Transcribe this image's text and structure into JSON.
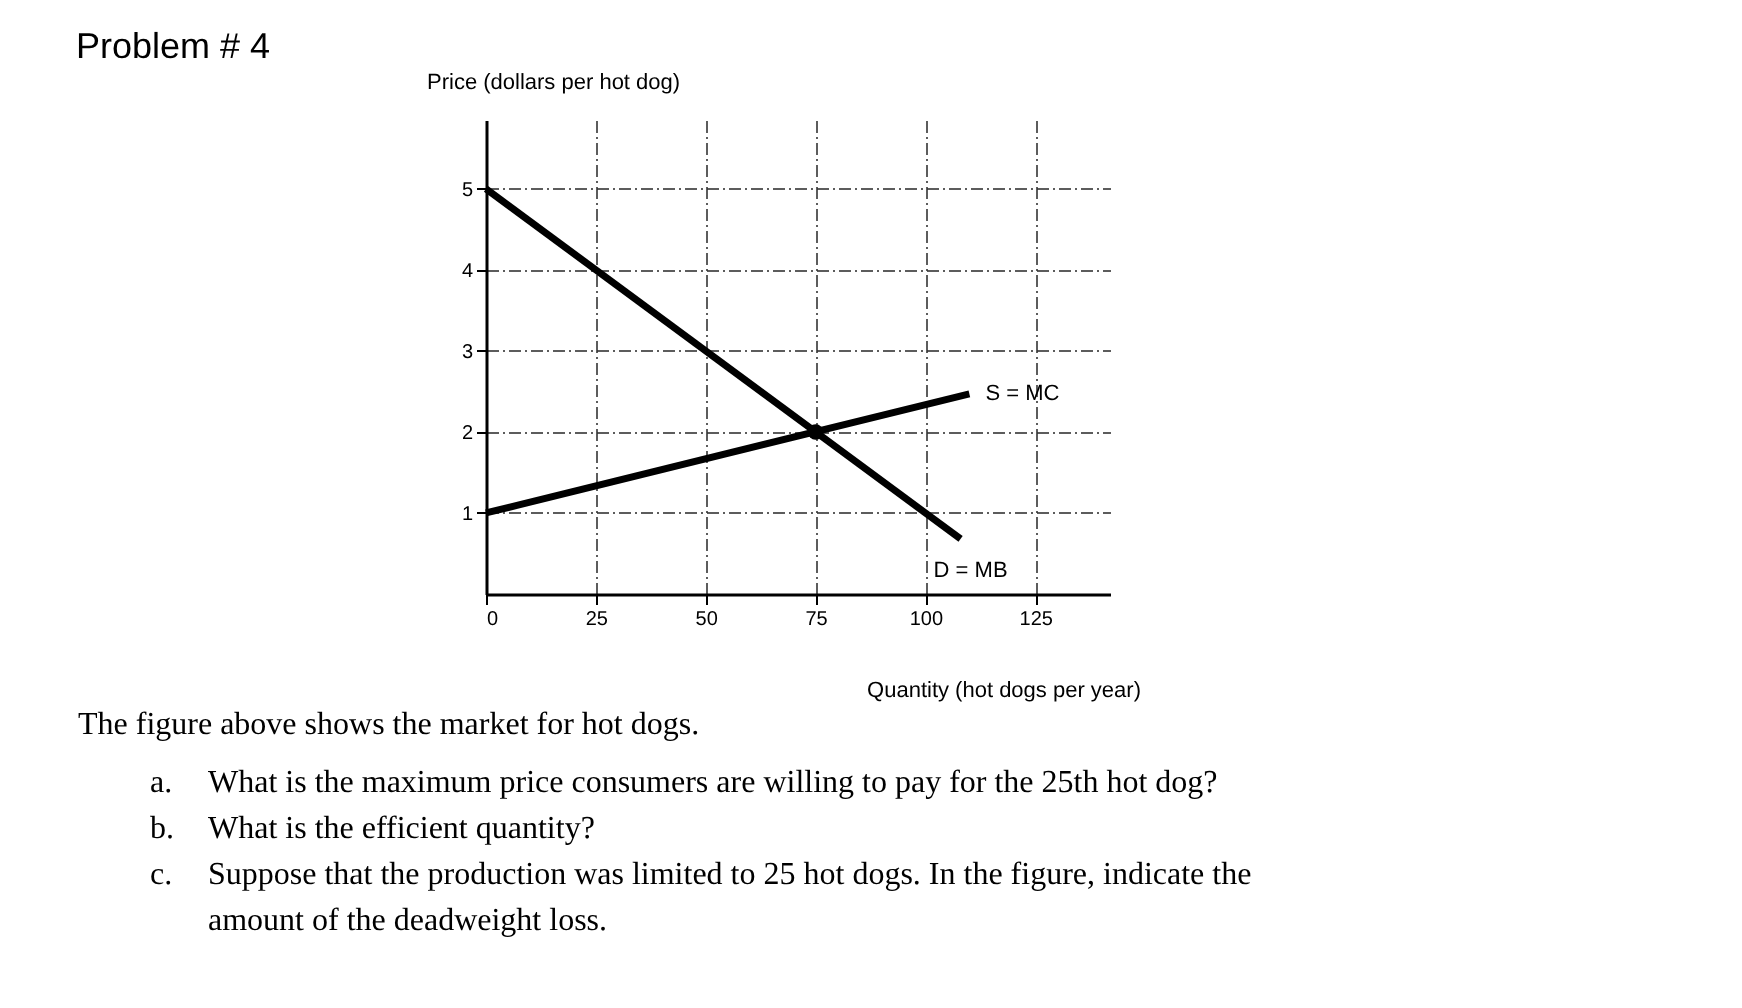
{
  "chart_data": {
    "type": "line",
    "title": "Problem # 4",
    "xlabel": "Quantity (hot dogs per year)",
    "ylabel": "Price (dollars per hot dog)",
    "xlim": [
      0,
      142
    ],
    "ylim": [
      0,
      5.85
    ],
    "xticks": [
      0,
      25,
      50,
      75,
      100,
      125
    ],
    "yticks": [
      1,
      2,
      3,
      4,
      5
    ],
    "grid": true,
    "line_style": "solid",
    "series": [
      {
        "name": "S = MC",
        "color": "#000000",
        "x": [
          0,
          110
        ],
        "values": [
          1,
          2.47
        ]
      },
      {
        "name": "D = MB",
        "color": "#000000",
        "x": [
          0,
          108
        ],
        "values": [
          5,
          0.68
        ]
      },
      {
        "type": "scatter",
        "color": "#000000",
        "x": [
          75
        ],
        "values": [
          2
        ]
      }
    ],
    "annotations": [
      "The figure above shows the market for hot dogs.",
      "a. What is the maximum price consumers are willing to pay for the 25th hot dog?",
      "b. What is the efficient quantity?",
      "c. Suppose that the production was limited to 25 hot dogs. In the figure, indicate the amount of the deadweight loss."
    ]
  }
}
